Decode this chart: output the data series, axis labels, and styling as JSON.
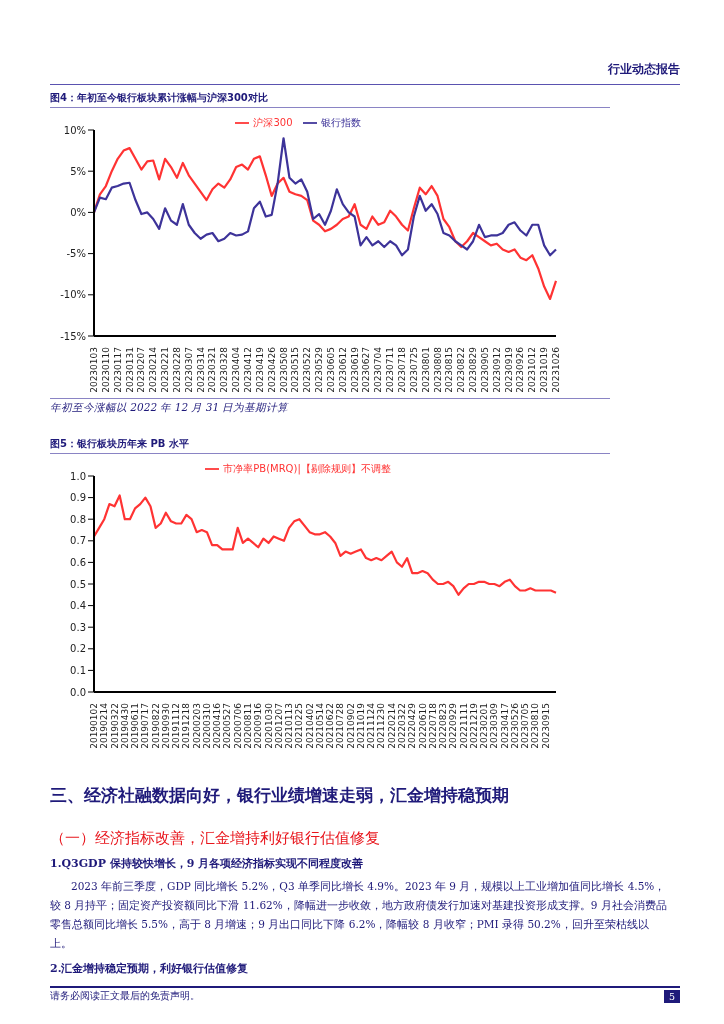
{
  "chart_data": [
    {
      "type": "line",
      "title": "图4：年初至今银行板块累计涨幅与沪深300对比",
      "categories": [
        "20230103",
        null,
        "20230110",
        null,
        "20230117",
        null,
        "20230131",
        null,
        "20230207",
        null,
        "20230214",
        null,
        "20230221",
        null,
        "20230228",
        null,
        "20230307",
        null,
        "20230314",
        null,
        "20230321",
        null,
        "20230328",
        null,
        "20230404",
        null,
        "20230412",
        null,
        "20230419",
        null,
        "20230426",
        null,
        "20230508",
        null,
        "20230515",
        null,
        "20230522",
        null,
        "20230529",
        null,
        "20230605",
        null,
        "20230612",
        null,
        "20230619",
        null,
        "20230627",
        null,
        "20230704",
        null,
        "20230711",
        null,
        "20230718",
        null,
        "20230725",
        null,
        "20230801",
        null,
        "20230808",
        null,
        "20230815",
        null,
        "20230822",
        null,
        "20230829",
        null,
        "20230905",
        null,
        "20230912",
        null,
        "20230919",
        null,
        "20230926",
        null,
        "20231012",
        null,
        "20231019",
        null,
        "20231026"
      ],
      "series": [
        {
          "name": "沪深300",
          "color": "#ff3333",
          "values": [
            0,
            2.2,
            3.2,
            5,
            6.5,
            7.5,
            7.8,
            6.5,
            5.2,
            6.2,
            6.3,
            4,
            6.5,
            5.5,
            4.2,
            6,
            4.5,
            3.5,
            2.5,
            1.5,
            2.8,
            3.5,
            3,
            4,
            5.5,
            5.8,
            5.2,
            6.5,
            6.8,
            4.5,
            2,
            3.5,
            4.2,
            2.5,
            2.2,
            2,
            1.5,
            -1,
            -1.5,
            -2.3,
            -2,
            -1.5,
            -0.8,
            -0.5,
            1,
            -1.5,
            -2,
            -0.5,
            -1.5,
            -1.2,
            0.2,
            -0.5,
            -1.5,
            -2.2,
            0.5,
            3,
            2.2,
            3.2,
            2,
            -0.8,
            -1.8,
            -3.5,
            -4.2,
            -3.5,
            -2.5,
            -3,
            -3.5,
            -4,
            -3.8,
            -4.5,
            -4.8,
            -4.5,
            -5.5,
            -5.8,
            -5.2,
            -6.8,
            -9,
            -10.5,
            -8.3
          ]
        },
        {
          "name": "银行指数",
          "color": "#3d3399",
          "values": [
            0,
            1.8,
            1.6,
            3,
            3.2,
            3.5,
            3.6,
            1.5,
            -0.2,
            0,
            -0.8,
            -2,
            0.5,
            -1,
            -1.5,
            1,
            -1.5,
            -2.5,
            -3.2,
            -2.7,
            -2.5,
            -3.5,
            -3.2,
            -2.5,
            -2.8,
            -2.7,
            -2.3,
            0.5,
            1.3,
            -0.5,
            -0.3,
            3.5,
            9,
            4.2,
            3.5,
            4,
            2.5,
            -0.8,
            -0.2,
            -1.5,
            0.2,
            2.8,
            1,
            0,
            -0.5,
            -4,
            -3,
            -4,
            -3.5,
            -4.2,
            -3.5,
            -4,
            -5.2,
            -4.5,
            -0.5,
            2,
            0.2,
            1,
            -0.2,
            -2.5,
            -2.8,
            -3.5,
            -4,
            -4.5,
            -3.5,
            -1.5,
            -3,
            -2.8,
            -2.8,
            -2.5,
            -1.5,
            -1.2,
            -2.2,
            -2.8,
            -1.5,
            -1.5,
            -4,
            -5.2,
            -4.5
          ]
        }
      ],
      "ylim": [
        -15,
        10
      ],
      "yticks": [
        {
          "value": -15,
          "label": "-15%"
        },
        {
          "value": -10,
          "label": "-10%"
        },
        {
          "value": -5,
          "label": "-5%"
        },
        {
          "value": 0,
          "label": "0%"
        },
        {
          "value": 5,
          "label": "5%"
        },
        {
          "value": 10,
          "label": "10%"
        }
      ],
      "legend": "top",
      "marker": "none",
      "annotations": [
        "年初至今涨幅以 2022 年 12 月 31 日为基期计算"
      ]
    },
    {
      "type": "line",
      "title": "图5：银行板块历年来 PB 水平",
      "categories": [
        "20190102",
        null,
        "20190214",
        null,
        "20190322",
        null,
        "20190430",
        null,
        "20190611",
        null,
        "20190717",
        null,
        "20190822",
        null,
        "20190930",
        null,
        "20191112",
        null,
        "20191218",
        null,
        "20200203",
        null,
        "20200310",
        null,
        "20200416",
        null,
        "20200527",
        null,
        "20200706",
        null,
        "20200811",
        null,
        "20200916",
        null,
        "20201030",
        null,
        "20201207",
        null,
        "20210113",
        null,
        "20210225",
        null,
        "20210402",
        null,
        "20210514",
        null,
        "20210622",
        null,
        "20210728",
        null,
        "20210902",
        null,
        "20211019",
        null,
        "20211124",
        null,
        "20211230",
        null,
        "20220214",
        null,
        "20220322",
        null,
        "20220429",
        null,
        "20220610",
        null,
        "20220718",
        null,
        "20220823",
        null,
        "20220929",
        null,
        "20221111",
        null,
        "20221219",
        null,
        "20230201",
        null,
        "20230309",
        null,
        "20230417",
        null,
        "20230526",
        null,
        "20230705",
        null,
        "20230810",
        null,
        "20230915",
        null,
        null
      ],
      "series": [
        {
          "name": "市净率PB(MRQ)|【剔除规则】不调整",
          "color": "#ff3333",
          "values": [
            0.72,
            0.76,
            0.8,
            0.87,
            0.86,
            0.91,
            0.8,
            0.8,
            0.85,
            0.87,
            0.9,
            0.86,
            0.76,
            0.78,
            0.83,
            0.79,
            0.78,
            0.78,
            0.82,
            0.8,
            0.74,
            0.75,
            0.74,
            0.68,
            0.68,
            0.66,
            0.66,
            0.66,
            0.76,
            0.69,
            0.71,
            0.69,
            0.67,
            0.71,
            0.69,
            0.72,
            0.71,
            0.7,
            0.76,
            0.79,
            0.8,
            0.77,
            0.74,
            0.73,
            0.73,
            0.74,
            0.72,
            0.69,
            0.63,
            0.65,
            0.64,
            0.65,
            0.66,
            0.62,
            0.61,
            0.62,
            0.61,
            0.63,
            0.65,
            0.6,
            0.58,
            0.62,
            0.55,
            0.55,
            0.56,
            0.55,
            0.52,
            0.5,
            0.5,
            0.51,
            0.49,
            0.45,
            0.48,
            0.5,
            0.5,
            0.51,
            0.51,
            0.5,
            0.5,
            0.49,
            0.51,
            0.52,
            0.49,
            0.47,
            0.47,
            0.48,
            0.47,
            0.47,
            0.47,
            0.47,
            0.46
          ]
        }
      ],
      "ylim": [
        0,
        1
      ],
      "yticks": [
        {
          "value": 0,
          "label": "0.0"
        },
        0.1,
        0.2,
        0.3,
        0.4,
        0.5,
        0.6,
        0.7,
        0.8,
        0.9,
        {
          "value": 1,
          "label": "1.0"
        }
      ],
      "legend": "top",
      "marker": "none"
    },
    {
      "type": "other",
      "title": "三、经济社融数据向好，银行业绩增速走弱，汇金增持稳预期",
      "subtitle": "（一）经济指标改善，汇金增持利好银行估值修复",
      "annotations": [
        "行业动态报告",
        "1.Q3GDP 保持较快增长，9 月各项经济指标实现不同程度改善",
        "2023 年前三季度，GDP 同比增长 5.2%，Q3 单季同比增长 4.9%。2023 年 9 月，规模以上工业增加值同比增长 4.5%，较 8 月持平；固定资产投资额同比下滑 11.62%，降幅进一步收敛，地方政府债发行加速对基建投资形成支撑。9 月社会消费品零售总额同比增长 5.5%，高于 8 月增速；9 月出口同比下降 6.2%，降幅较 8 月收窄；PMI 录得 50.2%，回升至荣枯线以上。",
        "2.汇金增持稳定预期，利好银行估值修复",
        "请务必阅读正文最后的免责声明。",
        "5"
      ]
    }
  ]
}
